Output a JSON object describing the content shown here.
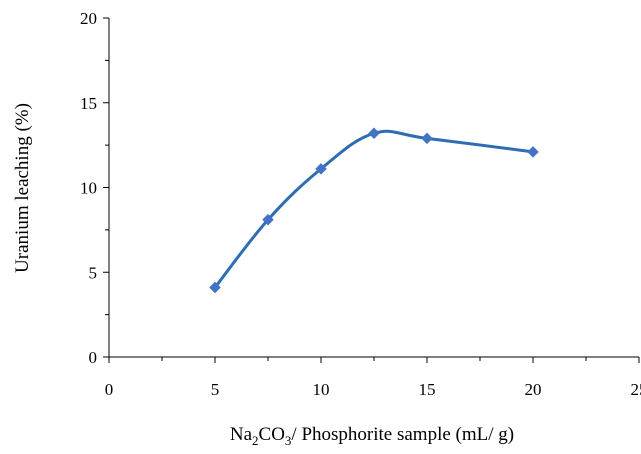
{
  "chart_data": {
    "type": "line",
    "title": "",
    "xlabel": {
      "prefix": "Na",
      "sub1": "2",
      "mid": "CO",
      "sub2": "3",
      "suffix": "/ Phosphorite sample (mL/ g)"
    },
    "ylabel": "Uranium leaching (%)",
    "xlim": [
      0,
      25
    ],
    "ylim": [
      0,
      20
    ],
    "xticks": [
      0,
      5,
      10,
      15,
      20,
      25
    ],
    "yticks": [
      0,
      5,
      10,
      15,
      20
    ],
    "x_minor_step": 2.5,
    "y_minor_step": 2.5,
    "grid": false,
    "legend": "none",
    "smooth": true,
    "series": [
      {
        "color": "#2e6db4",
        "marker": "diamond",
        "marker_color": "#4472c4",
        "x": [
          5,
          7.5,
          10,
          12.5,
          15,
          20
        ],
        "y": [
          4.1,
          8.1,
          11.1,
          13.2,
          12.9,
          12.1
        ]
      }
    ]
  }
}
